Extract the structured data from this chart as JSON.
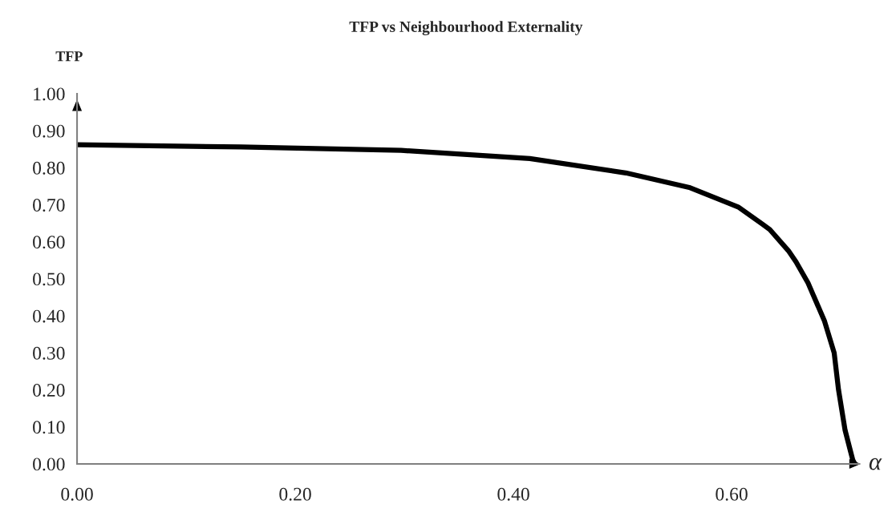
{
  "chart_data": {
    "type": "line",
    "title": "TFP vs Neighbourhood Externality",
    "ylabel": "TFP",
    "xlabel": "α",
    "x": [
      0.0,
      0.15,
      0.297,
      0.415,
      0.503,
      0.562,
      0.606,
      0.628,
      0.635,
      0.652,
      0.659,
      0.67,
      0.685,
      0.694,
      0.698,
      0.704,
      0.711,
      0.713
    ],
    "series": [
      {
        "color": "#000000",
        "values": [
          0.862,
          0.856,
          0.847,
          0.825,
          0.786,
          0.746,
          0.694,
          0.648,
          0.633,
          0.576,
          0.546,
          0.489,
          0.387,
          0.3,
          0.2,
          0.091,
          0.011,
          0.0
        ]
      }
    ],
    "xlim": [
      0,
      0.717
    ],
    "ylim": [
      0,
      1.0
    ],
    "xticks": [
      {
        "value": 0,
        "label": "0.00"
      },
      {
        "value": 0.2,
        "label": "0.20"
      },
      {
        "value": 0.4,
        "label": "0.40"
      },
      {
        "value": 0.6,
        "label": "0.60"
      }
    ],
    "yticks": [
      {
        "value": 0,
        "label": "0.00"
      },
      {
        "value": 0.1,
        "label": "0.10"
      },
      {
        "value": 0.2,
        "label": "0.20"
      },
      {
        "value": 0.3,
        "label": "0.30"
      },
      {
        "value": 0.4,
        "label": "0.40"
      },
      {
        "value": 0.5,
        "label": "0.50"
      },
      {
        "value": 0.6,
        "label": "0.60"
      },
      {
        "value": 0.7,
        "label": "0.70"
      },
      {
        "value": 0.8,
        "label": "0.80"
      },
      {
        "value": 0.9,
        "label": "0.90"
      },
      {
        "value": 1.0,
        "label": "1.00"
      }
    ],
    "grid": false,
    "legend": false,
    "marker": "none",
    "line_style": "solid"
  }
}
